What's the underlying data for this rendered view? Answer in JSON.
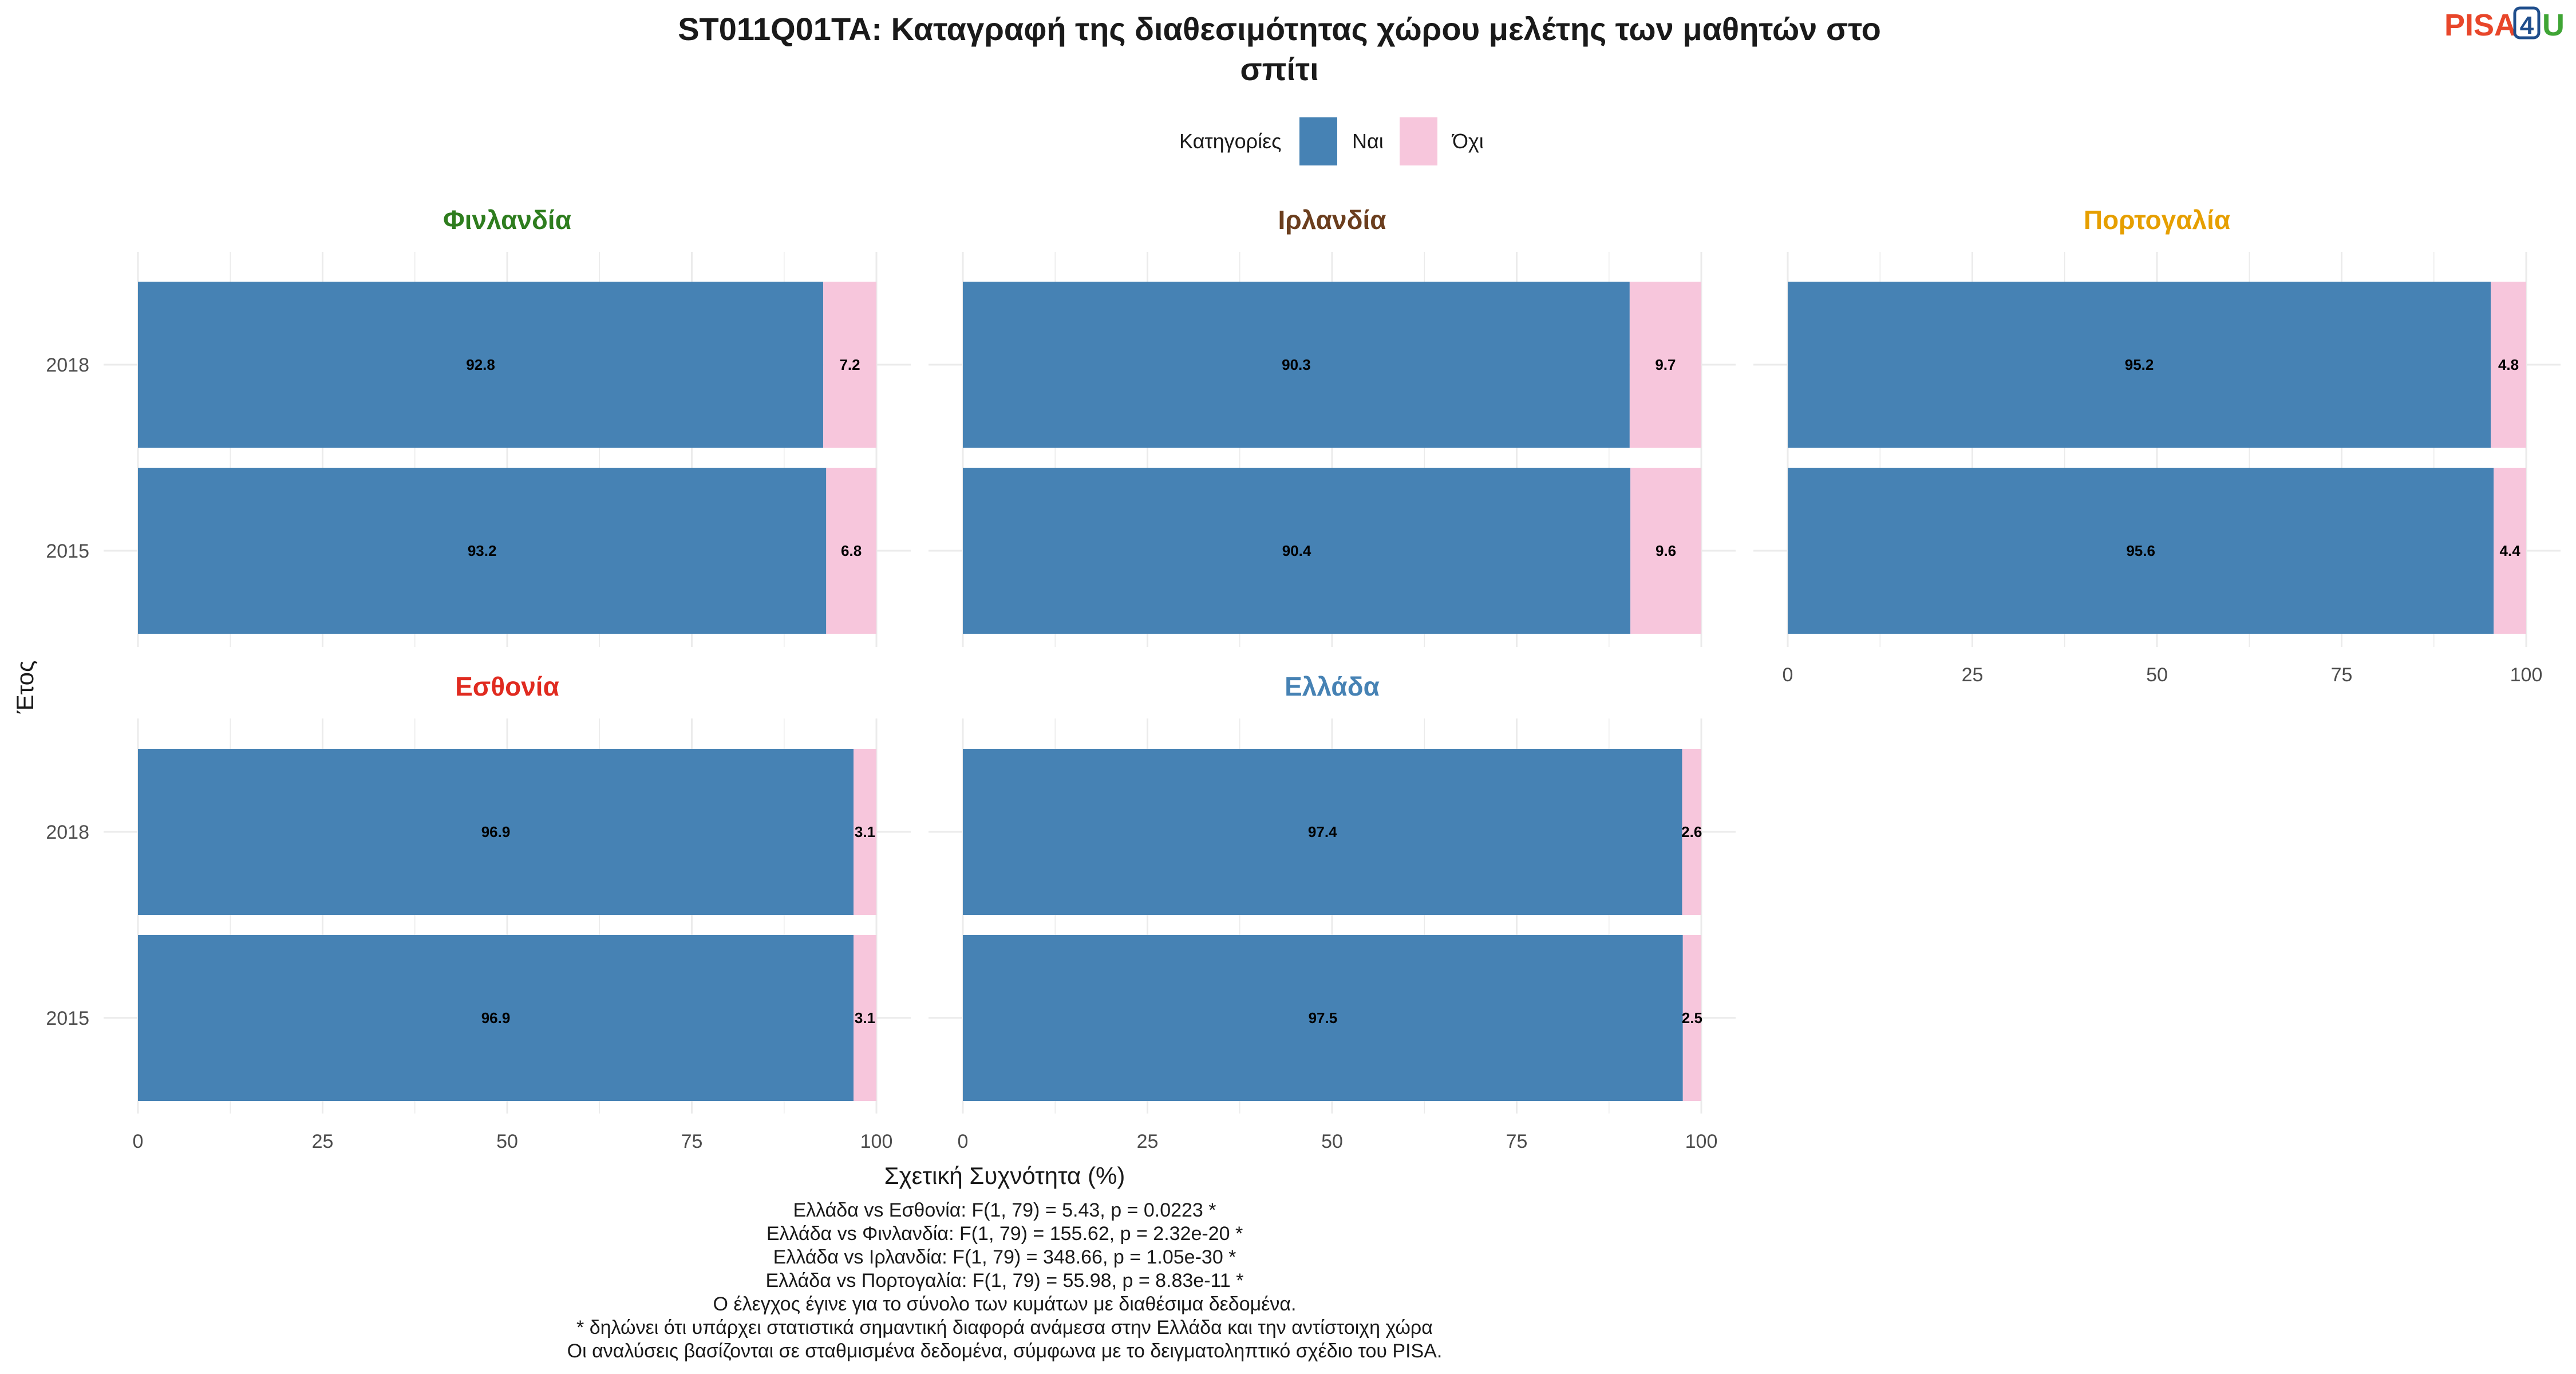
{
  "chart_data": {
    "type": "bar",
    "orientation": "horizontal",
    "stacked": true,
    "title_line1": "ST011Q01TA: Καταγραφή της διαθεσιμότητας χώρου μελέτης των μαθητών στο",
    "title_line2": "σπίτι",
    "xlabel": "Σχετική Συχνότητα (%)",
    "ylabel": "Έτος",
    "xlim": [
      0,
      100
    ],
    "xticks": [
      "0",
      "25",
      "50",
      "75",
      "100"
    ],
    "grid": true,
    "legend": {
      "title": "Κατηγορίες",
      "placement": "top",
      "items": [
        {
          "label": "Ναι",
          "color": "#4682B4"
        },
        {
          "label": "Όχι",
          "color": "#F7C6DC"
        }
      ]
    },
    "categories": [
      "2018",
      "2015"
    ],
    "facets": [
      {
        "name": "Φινλανδία",
        "color": "#2E7D1E",
        "values": {
          "2018": [
            92.8,
            7.2
          ],
          "2015": [
            93.2,
            6.8
          ]
        },
        "labels": {
          "2018": [
            "92.8",
            "7.2"
          ],
          "2015": [
            "93.2",
            "6.8"
          ]
        }
      },
      {
        "name": "Ιρλανδία",
        "color": "#6B3E1E",
        "values": {
          "2018": [
            90.3,
            9.7
          ],
          "2015": [
            90.4,
            9.6
          ]
        },
        "labels": {
          "2018": [
            "90.3",
            "9.7"
          ],
          "2015": [
            "90.4",
            "9.6"
          ]
        }
      },
      {
        "name": "Πορτογαλία",
        "color": "#E69F00",
        "values": {
          "2018": [
            95.2,
            4.8
          ],
          "2015": [
            95.6,
            4.4
          ]
        },
        "labels": {
          "2018": [
            "95.2",
            "4.8"
          ],
          "2015": [
            "95.6",
            "4.4"
          ]
        }
      },
      {
        "name": "Εσθονία",
        "color": "#E02B20",
        "values": {
          "2018": [
            96.9,
            3.1
          ],
          "2015": [
            96.9,
            3.1
          ]
        },
        "labels": {
          "2018": [
            "96.9",
            "3.1"
          ],
          "2015": [
            "96.9",
            "3.1"
          ]
        }
      },
      {
        "name": "Ελλάδα",
        "color": "#4682B4",
        "values": {
          "2018": [
            97.4,
            2.6
          ],
          "2015": [
            97.5,
            2.5
          ]
        },
        "labels": {
          "2018": [
            "97.4",
            "2.6"
          ],
          "2015": [
            "97.5",
            "2.5"
          ]
        }
      }
    ]
  },
  "footnotes": [
    "Ελλάδα vs Εσθονία: F(1, 79) = 5.43, p = 0.0223 *",
    "Ελλάδα vs Φινλανδία: F(1, 79) = 155.62, p = 2.32e-20 *",
    "Ελλάδα vs Ιρλανδία: F(1, 79) = 348.66, p = 1.05e-30 *",
    "Ελλάδα vs Πορτογαλία: F(1, 79) = 55.98, p = 8.83e-11 *",
    "Ο έλεγχος έγινε για το σύνολο των κυμάτων με διαθέσιμα δεδομένα.",
    "* δηλώνει ότι υπάρχει στατιστικά σημαντική διαφορά ανάμεσα στην Ελλάδα και την αντίστοιχη χώρα",
    "Οι αναλύσεις βασίζονται σε σταθμισμένα δεδομένα, σύμφωνα με το δειγματοληπτικό σχέδιο του PISA."
  ],
  "logo": {
    "part1": "PISA",
    "part2": "4",
    "part3": "U",
    "color1": "#E8462A",
    "color2": "#1F4E8C",
    "color3": "#3FA535"
  }
}
